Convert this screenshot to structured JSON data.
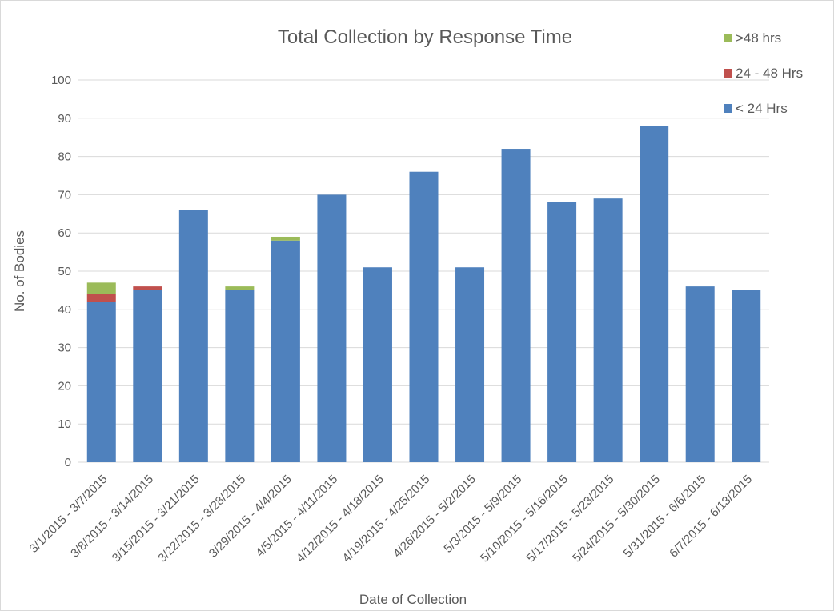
{
  "chart_data": {
    "type": "bar",
    "stacked": true,
    "title": "Total Collection by Response Time",
    "xlabel": "Date of Collection",
    "ylabel": "No. of Bodies",
    "ylim": [
      0,
      100
    ],
    "yticks": [
      0,
      10,
      20,
      30,
      40,
      50,
      60,
      70,
      80,
      90,
      100
    ],
    "grid": true,
    "legend_position": "top-right",
    "categories": [
      "3/1/2015 - 3/7/2015",
      "3/8/2015 - 3/14/2015",
      "3/15/2015 - 3/21/2015",
      "3/22/2015 - 3/28/2015",
      "3/29/2015 - 4/4/2015",
      "4/5/2015 - 4/11/2015",
      "4/12/2015 - 4/18/2015",
      "4/19/2015 - 4/25/2015",
      "4/26/2015 - 5/2/2015",
      "5/3/2015 - 5/9/2015",
      "5/10/2015 - 5/16/2015",
      "5/17/2015 - 5/23/2015",
      "5/24/2015 - 5/30/2015",
      "5/31/2015 - 6/6/2015",
      "6/7/2015 - 6/13/2015"
    ],
    "series": [
      {
        "name": "< 24 Hrs",
        "color": "#4f81bd",
        "values": [
          42,
          45,
          66,
          45,
          58,
          70,
          51,
          76,
          51,
          82,
          68,
          69,
          88,
          46,
          45
        ]
      },
      {
        "name": "24 - 48 Hrs",
        "color": "#c0504d",
        "values": [
          2,
          1,
          0,
          0,
          0,
          0,
          0,
          0,
          0,
          0,
          0,
          0,
          0,
          0,
          0
        ]
      },
      {
        "name": ">48 hrs",
        "color": "#9bbb59",
        "values": [
          3,
          0,
          0,
          1,
          1,
          0,
          0,
          0,
          0,
          0,
          0,
          0,
          0,
          0,
          0
        ]
      }
    ],
    "legend_order": [
      ">48 hrs",
      "24 - 48 Hrs",
      "< 24 Hrs"
    ]
  }
}
